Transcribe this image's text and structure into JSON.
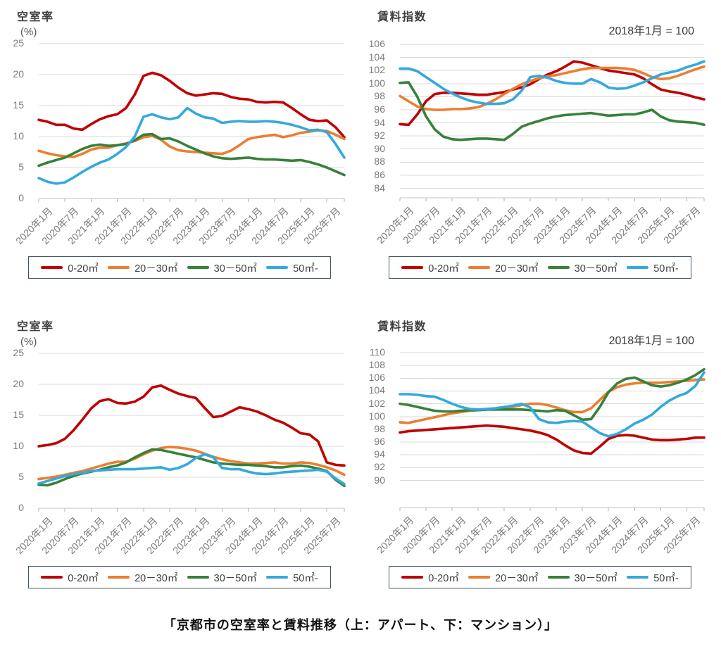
{
  "caption": "「京都市の空室率と賃料推移（上：アパート、下：マンション）」",
  "palette": {
    "red": "#c00000",
    "orange": "#ed7d31",
    "green": "#37813b",
    "blue": "#33a9dd"
  },
  "legend": [
    {
      "key": "0-20sqm",
      "label": "0-20㎡",
      "color": "red"
    },
    {
      "key": "20-30sqm",
      "label": "20－30㎡",
      "color": "orange"
    },
    {
      "key": "30-50sqm",
      "label": "30－50㎡",
      "color": "green"
    },
    {
      "key": "50sqm-plus",
      "label": "50㎡-",
      "color": "blue"
    }
  ],
  "x_axis": {
    "tick_labels": [
      "2020年1月",
      "2020年7月",
      "2021年1月",
      "2021年7月",
      "2022年1月",
      "2022年7月",
      "2023年1月",
      "2023年7月",
      "2024年1月",
      "2024年7月",
      "2025年1月",
      "2025年7月"
    ],
    "points_start": "2020年1月",
    "points_end": "2025年11月",
    "interval_months": 2,
    "n_points": 36
  },
  "chart_data": [
    {
      "id": "vacancy-apartment",
      "type": "line",
      "title": "空室率",
      "y_axis_unit": "(%)",
      "subtitle": "",
      "ylim": [
        0,
        25
      ],
      "y_ticks": [
        25,
        20,
        15,
        10,
        5,
        0
      ],
      "grid": true,
      "legend_position": "bottom",
      "series": [
        {
          "key": "0-20sqm",
          "name": "0-20㎡",
          "color": "red",
          "values": [
            12.7,
            12.4,
            11.9,
            11.9,
            11.3,
            11.1,
            12.0,
            12.8,
            13.3,
            13.6,
            14.6,
            16.8,
            19.8,
            20.3,
            19.9,
            19.0,
            17.9,
            17.0,
            16.6,
            16.8,
            17.0,
            16.9,
            16.4,
            16.1,
            16.0,
            15.6,
            15.5,
            15.6,
            15.5,
            14.6,
            13.6,
            12.7,
            12.5,
            12.6,
            11.5,
            9.9
          ]
        },
        {
          "key": "20-30sqm",
          "name": "20－30㎡",
          "color": "orange",
          "values": [
            7.7,
            7.3,
            7.0,
            6.8,
            6.7,
            7.2,
            7.9,
            8.2,
            8.2,
            8.6,
            8.9,
            9.3,
            9.9,
            10.1,
            9.5,
            8.4,
            7.8,
            7.6,
            7.5,
            7.4,
            7.3,
            7.2,
            7.7,
            8.6,
            9.6,
            9.9,
            10.1,
            10.3,
            9.9,
            10.2,
            10.6,
            10.8,
            11.0,
            10.9,
            10.3,
            9.6
          ]
        },
        {
          "key": "30-50sqm",
          "name": "30－50㎡",
          "color": "green",
          "values": [
            5.3,
            5.8,
            6.2,
            6.6,
            7.3,
            8.0,
            8.5,
            8.7,
            8.5,
            8.6,
            8.8,
            9.4,
            10.3,
            10.4,
            9.6,
            9.7,
            9.2,
            8.5,
            7.9,
            7.3,
            6.8,
            6.5,
            6.4,
            6.5,
            6.6,
            6.4,
            6.3,
            6.3,
            6.2,
            6.1,
            6.2,
            5.9,
            5.5,
            5.0,
            4.4,
            3.8
          ]
        },
        {
          "key": "50sqm-plus",
          "name": "50㎡-",
          "color": "blue",
          "values": [
            3.3,
            2.7,
            2.4,
            2.6,
            3.4,
            4.3,
            5.1,
            5.8,
            6.3,
            7.2,
            8.3,
            10.0,
            13.2,
            13.6,
            13.1,
            12.8,
            13.1,
            14.6,
            13.7,
            13.1,
            12.9,
            12.2,
            12.4,
            12.5,
            12.4,
            12.4,
            12.5,
            12.4,
            12.2,
            11.9,
            11.5,
            11.0,
            11.1,
            10.7,
            8.8,
            6.6
          ]
        }
      ]
    },
    {
      "id": "rent-index-apartment",
      "type": "line",
      "title": "賃料指数",
      "y_axis_unit": "",
      "subtitle": "2018年1月 = 100",
      "ylim": [
        84,
        106
      ],
      "y_ticks": [
        106,
        104,
        102,
        100,
        98,
        96,
        94,
        92,
        90,
        88,
        86,
        84
      ],
      "grid": true,
      "legend_position": "bottom",
      "series": [
        {
          "key": "0-20sqm",
          "name": "0-20㎡",
          "color": "red",
          "values": [
            93.8,
            93.7,
            95.3,
            97.3,
            98.4,
            98.6,
            98.6,
            98.5,
            98.4,
            98.3,
            98.3,
            98.5,
            98.7,
            99.1,
            99.4,
            99.9,
            100.7,
            101.4,
            101.9,
            102.6,
            103.4,
            103.2,
            102.8,
            102.4,
            102.0,
            101.8,
            101.6,
            101.4,
            100.8,
            99.9,
            99.1,
            98.8,
            98.6,
            98.3,
            97.9,
            97.6
          ]
        },
        {
          "key": "20-30sqm",
          "name": "20－30㎡",
          "color": "orange",
          "values": [
            98.1,
            97.3,
            96.5,
            96.1,
            96.0,
            96.0,
            96.1,
            96.1,
            96.2,
            96.4,
            96.9,
            97.6,
            98.4,
            99.2,
            99.9,
            100.4,
            100.8,
            101.1,
            101.3,
            101.6,
            101.9,
            102.2,
            102.4,
            102.4,
            102.4,
            102.4,
            102.3,
            102.1,
            101.6,
            101.0,
            100.7,
            100.8,
            101.2,
            101.7,
            102.2,
            102.6
          ]
        },
        {
          "key": "30-50sqm",
          "name": "30－50㎡",
          "color": "green",
          "values": [
            100.1,
            100.2,
            98.0,
            95.0,
            93.0,
            91.9,
            91.5,
            91.4,
            91.5,
            91.6,
            91.6,
            91.5,
            91.4,
            92.3,
            93.4,
            93.9,
            94.3,
            94.7,
            95.0,
            95.2,
            95.3,
            95.4,
            95.5,
            95.3,
            95.1,
            95.2,
            95.3,
            95.3,
            95.6,
            96.0,
            95.0,
            94.4,
            94.2,
            94.1,
            94.0,
            93.7
          ]
        },
        {
          "key": "50sqm-plus",
          "name": "50㎡-",
          "color": "blue",
          "values": [
            102.3,
            102.3,
            101.9,
            101.0,
            100.1,
            99.2,
            98.5,
            97.9,
            97.4,
            97.1,
            96.9,
            96.9,
            97.0,
            97.6,
            98.9,
            101.0,
            101.2,
            100.9,
            100.4,
            100.1,
            100.0,
            100.0,
            100.7,
            100.2,
            99.4,
            99.2,
            99.3,
            99.7,
            100.2,
            100.8,
            101.4,
            101.7,
            102.0,
            102.5,
            102.9,
            103.4
          ]
        }
      ]
    },
    {
      "id": "vacancy-mansion",
      "type": "line",
      "title": "空室率",
      "y_axis_unit": "(%)",
      "subtitle": "",
      "ylim": [
        0,
        25
      ],
      "y_ticks": [
        25,
        20,
        15,
        10,
        5,
        0
      ],
      "grid": true,
      "legend_position": "bottom",
      "series": [
        {
          "key": "0-20sqm",
          "name": "0-20㎡",
          "color": "red",
          "values": [
            10.0,
            10.2,
            10.5,
            11.2,
            12.6,
            14.3,
            16.1,
            17.3,
            17.6,
            17.0,
            16.9,
            17.2,
            18.0,
            19.5,
            19.8,
            19.1,
            18.5,
            18.1,
            17.8,
            16.2,
            14.7,
            14.9,
            15.6,
            16.3,
            16.0,
            15.6,
            15.0,
            14.3,
            13.8,
            13.0,
            12.1,
            11.9,
            10.8,
            7.4,
            7.0,
            6.9
          ]
        },
        {
          "key": "20-30sqm",
          "name": "20－30㎡",
          "color": "orange",
          "values": [
            4.7,
            4.9,
            5.1,
            5.4,
            5.7,
            6.0,
            6.4,
            6.8,
            7.2,
            7.5,
            7.5,
            8.0,
            8.7,
            9.3,
            9.7,
            9.9,
            9.8,
            9.6,
            9.3,
            8.8,
            8.3,
            7.9,
            7.6,
            7.4,
            7.2,
            7.2,
            7.3,
            7.4,
            7.2,
            7.2,
            7.4,
            7.3,
            7.0,
            6.6,
            6.1,
            5.4
          ]
        },
        {
          "key": "30-50sqm",
          "name": "30－50㎡",
          "color": "green",
          "values": [
            3.8,
            3.7,
            4.1,
            4.7,
            5.2,
            5.6,
            5.9,
            6.2,
            6.6,
            6.9,
            7.4,
            8.2,
            8.9,
            9.5,
            9.4,
            9.1,
            8.8,
            8.5,
            8.2,
            7.8,
            7.4,
            7.2,
            7.1,
            7.0,
            7.0,
            6.9,
            6.8,
            6.6,
            6.6,
            6.8,
            6.9,
            6.7,
            6.4,
            6.0,
            4.6,
            3.6
          ]
        },
        {
          "key": "50sqm-plus",
          "name": "50㎡-",
          "color": "blue",
          "values": [
            4.0,
            4.4,
            4.8,
            5.2,
            5.5,
            5.7,
            6.0,
            6.1,
            6.2,
            6.3,
            6.3,
            6.3,
            6.4,
            6.5,
            6.6,
            6.2,
            6.5,
            7.1,
            8.1,
            8.7,
            8.2,
            6.5,
            6.3,
            6.3,
            5.9,
            5.6,
            5.5,
            5.6,
            5.8,
            5.9,
            6.0,
            6.1,
            6.2,
            5.9,
            4.8,
            3.9
          ]
        }
      ]
    },
    {
      "id": "rent-index-mansion",
      "type": "line",
      "title": "賃料指数",
      "y_axis_unit": "",
      "subtitle": "2018年1月 = 100",
      "ylim": [
        90,
        110
      ],
      "y_ticks": [
        110,
        108,
        106,
        104,
        102,
        100,
        98,
        96,
        94,
        92,
        90
      ],
      "grid": true,
      "legend_position": "bottom",
      "series": [
        {
          "key": "0-20sqm",
          "name": "0-20㎡",
          "color": "red",
          "values": [
            97.5,
            97.7,
            97.8,
            97.9,
            98.0,
            98.1,
            98.2,
            98.3,
            98.4,
            98.5,
            98.6,
            98.5,
            98.4,
            98.2,
            98.0,
            97.8,
            97.5,
            97.1,
            96.4,
            95.5,
            94.7,
            94.3,
            94.2,
            95.3,
            96.5,
            97.0,
            97.1,
            97.0,
            96.7,
            96.4,
            96.3,
            96.3,
            96.4,
            96.5,
            96.7,
            96.7
          ]
        },
        {
          "key": "20-30sqm",
          "name": "20－30㎡",
          "color": "orange",
          "values": [
            99.1,
            99.0,
            99.3,
            99.6,
            99.9,
            100.2,
            100.5,
            100.7,
            100.9,
            101.0,
            101.1,
            101.2,
            101.3,
            101.5,
            101.8,
            102.0,
            102.0,
            101.8,
            101.4,
            101.0,
            100.7,
            100.7,
            101.3,
            102.6,
            103.9,
            104.6,
            105.0,
            105.2,
            105.3,
            105.3,
            105.3,
            105.4,
            105.5,
            105.6,
            105.7,
            105.8
          ]
        },
        {
          "key": "30-50sqm",
          "name": "30－50㎡",
          "color": "green",
          "values": [
            102.0,
            101.8,
            101.5,
            101.2,
            100.9,
            100.8,
            100.8,
            100.9,
            101.0,
            101.0,
            101.1,
            101.1,
            101.1,
            101.1,
            101.1,
            101.0,
            100.9,
            100.8,
            101.0,
            100.9,
            100.2,
            99.5,
            99.6,
            101.5,
            103.8,
            105.2,
            105.9,
            106.1,
            105.5,
            104.9,
            104.7,
            104.9,
            105.3,
            105.8,
            106.5,
            107.4
          ]
        },
        {
          "key": "50sqm-plus",
          "name": "50㎡-",
          "color": "blue",
          "values": [
            103.5,
            103.5,
            103.4,
            103.2,
            103.1,
            102.6,
            102.0,
            101.5,
            101.2,
            101.1,
            101.2,
            101.3,
            101.5,
            101.7,
            102.0,
            101.4,
            99.6,
            99.1,
            99.0,
            99.2,
            99.3,
            99.2,
            98.3,
            97.4,
            96.9,
            97.3,
            98.0,
            98.9,
            99.5,
            100.3,
            101.5,
            102.5,
            103.2,
            103.7,
            104.8,
            106.9
          ]
        }
      ]
    }
  ]
}
